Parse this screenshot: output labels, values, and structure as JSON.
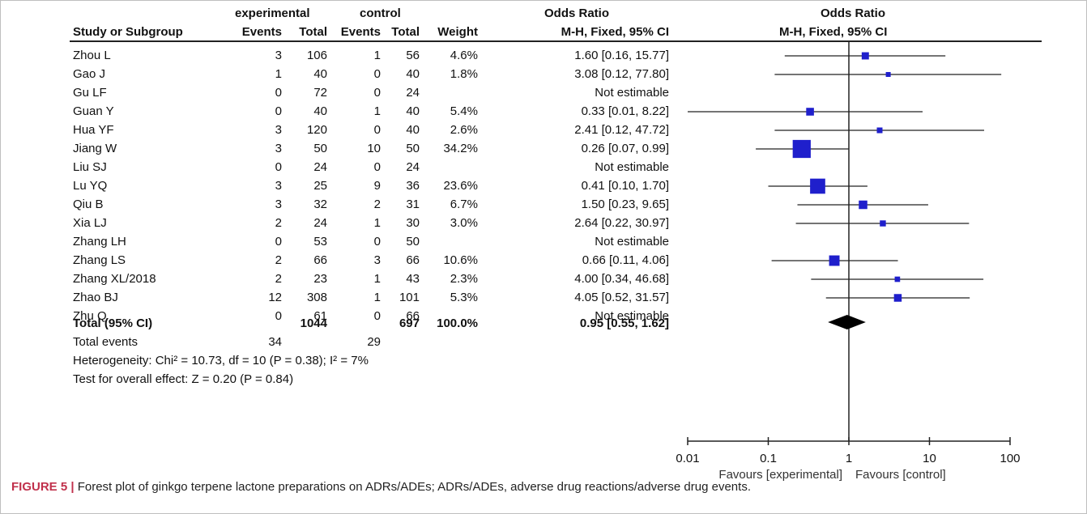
{
  "headers": {
    "group_experimental": "experimental",
    "group_control": "control",
    "odds_ratio_left": "Odds Ratio",
    "odds_ratio_right": "Odds Ratio",
    "study": "Study or Subgroup",
    "events_e": "Events",
    "total_e": "Total",
    "events_c": "Events",
    "total_c": "Total",
    "weight": "Weight",
    "method_left": "M-H, Fixed, 95% CI",
    "method_right": "M-H, Fixed, 95% CI"
  },
  "studies": [
    {
      "name": "Zhou L",
      "ev_e": "3",
      "tot_e": "106",
      "ev_c": "1",
      "tot_c": "56",
      "weight": "4.6%",
      "ci_text": "1.60 [0.16, 15.77]"
    },
    {
      "name": "Gao J",
      "ev_e": "1",
      "tot_e": "40",
      "ev_c": "0",
      "tot_c": "40",
      "weight": "1.8%",
      "ci_text": "3.08 [0.12, 77.80]"
    },
    {
      "name": "Gu LF",
      "ev_e": "0",
      "tot_e": "72",
      "ev_c": "0",
      "tot_c": "24",
      "weight": "",
      "ci_text": "Not estimable"
    },
    {
      "name": "Guan Y",
      "ev_e": "0",
      "tot_e": "40",
      "ev_c": "1",
      "tot_c": "40",
      "weight": "5.4%",
      "ci_text": "0.33 [0.01, 8.22]"
    },
    {
      "name": "Hua YF",
      "ev_e": "3",
      "tot_e": "120",
      "ev_c": "0",
      "tot_c": "40",
      "weight": "2.6%",
      "ci_text": "2.41 [0.12, 47.72]"
    },
    {
      "name": "Jiang W",
      "ev_e": "3",
      "tot_e": "50",
      "ev_c": "10",
      "tot_c": "50",
      "weight": "34.2%",
      "ci_text": "0.26 [0.07, 0.99]"
    },
    {
      "name": "Liu SJ",
      "ev_e": "0",
      "tot_e": "24",
      "ev_c": "0",
      "tot_c": "24",
      "weight": "",
      "ci_text": "Not estimable"
    },
    {
      "name": "Lu YQ",
      "ev_e": "3",
      "tot_e": "25",
      "ev_c": "9",
      "tot_c": "36",
      "weight": "23.6%",
      "ci_text": "0.41 [0.10, 1.70]"
    },
    {
      "name": "Qiu B",
      "ev_e": "3",
      "tot_e": "32",
      "ev_c": "2",
      "tot_c": "31",
      "weight": "6.7%",
      "ci_text": "1.50 [0.23, 9.65]"
    },
    {
      "name": "Xia LJ",
      "ev_e": "2",
      "tot_e": "24",
      "ev_c": "1",
      "tot_c": "30",
      "weight": "3.0%",
      "ci_text": "2.64 [0.22, 30.97]"
    },
    {
      "name": "Zhang LH",
      "ev_e": "0",
      "tot_e": "53",
      "ev_c": "0",
      "tot_c": "50",
      "weight": "",
      "ci_text": "Not estimable"
    },
    {
      "name": "Zhang LS",
      "ev_e": "2",
      "tot_e": "66",
      "ev_c": "3",
      "tot_c": "66",
      "weight": "10.6%",
      "ci_text": "0.66 [0.11, 4.06]"
    },
    {
      "name": "Zhang XL/2018",
      "ev_e": "2",
      "tot_e": "23",
      "ev_c": "1",
      "tot_c": "43",
      "weight": "2.3%",
      "ci_text": "4.00 [0.34, 46.68]"
    },
    {
      "name": "Zhao BJ",
      "ev_e": "12",
      "tot_e": "308",
      "ev_c": "1",
      "tot_c": "101",
      "weight": "5.3%",
      "ci_text": "4.05 [0.52, 31.57]"
    },
    {
      "name": "Zhu Q",
      "ev_e": "0",
      "tot_e": "61",
      "ev_c": "0",
      "tot_c": "66",
      "weight": "",
      "ci_text": "Not estimable"
    }
  ],
  "total": {
    "label": "Total (95% CI)",
    "tot_e": "1044",
    "tot_c": "697",
    "weight": "100.0%",
    "ci_text": "0.95 [0.55, 1.62]"
  },
  "total_events": {
    "label": "Total events",
    "ev_e": "34",
    "ev_c": "29"
  },
  "heterogeneity": "Heterogeneity: Chi² = 10.73, df = 10 (P = 0.38); I² = 7%",
  "overall_effect": "Test for overall effect: Z = 0.20 (P = 0.84)",
  "caption_label": "FIGURE 5 |",
  "caption_text": " Forest plot of ginkgo terpene lactone preparations on ADRs/ADEs; ADRs/ADEs, adverse drug reactions/adverse drug events.",
  "colors": {
    "marker": "#1f1fcc",
    "diamond": "#000000",
    "line": "#222222"
  },
  "chart_data": {
    "type": "forest",
    "x_scale": "log",
    "xlim": [
      0.01,
      100
    ],
    "x_ticks": [
      "0.01",
      "0.1",
      "1",
      "10",
      "100"
    ],
    "x_tick_values": [
      0.01,
      0.1,
      1,
      10,
      100
    ],
    "xlabel_left": "Favours [experimental]",
    "xlabel_right": "Favours [control]",
    "studies": [
      {
        "or": 1.6,
        "lo": 0.16,
        "hi": 15.77,
        "weight": 4.6
      },
      {
        "or": 3.08,
        "lo": 0.12,
        "hi": 77.8,
        "weight": 1.8
      },
      null,
      {
        "or": 0.33,
        "lo": 0.01,
        "hi": 8.22,
        "weight": 5.4
      },
      {
        "or": 2.41,
        "lo": 0.12,
        "hi": 47.72,
        "weight": 2.6
      },
      {
        "or": 0.26,
        "lo": 0.07,
        "hi": 0.99,
        "weight": 34.2
      },
      null,
      {
        "or": 0.41,
        "lo": 0.1,
        "hi": 1.7,
        "weight": 23.6
      },
      {
        "or": 1.5,
        "lo": 0.23,
        "hi": 9.65,
        "weight": 6.7
      },
      {
        "or": 2.64,
        "lo": 0.22,
        "hi": 30.97,
        "weight": 3.0
      },
      null,
      {
        "or": 0.66,
        "lo": 0.11,
        "hi": 4.06,
        "weight": 10.6
      },
      {
        "or": 4.0,
        "lo": 0.34,
        "hi": 46.68,
        "weight": 2.3
      },
      {
        "or": 4.05,
        "lo": 0.52,
        "hi": 31.57,
        "weight": 5.3
      },
      null
    ],
    "pooled": {
      "or": 0.95,
      "lo": 0.55,
      "hi": 1.62
    }
  }
}
